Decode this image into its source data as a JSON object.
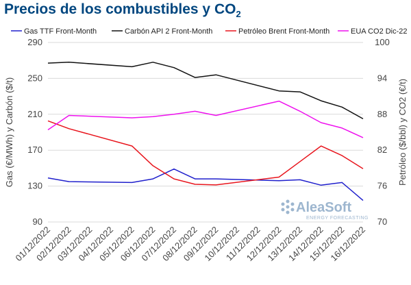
{
  "chart_data": {
    "type": "line",
    "title_main": "Precios de los combustibles y CO",
    "title_sub": "2",
    "categories": [
      "01/12/2022",
      "02/12/2022",
      "03/12/2022",
      "04/12/2022",
      "05/12/2022",
      "06/12/2022",
      "07/12/2022",
      "08/12/2022",
      "09/12/2022",
      "10/12/2022",
      "11/12/2022",
      "12/12/2022",
      "13/12/2022",
      "14/12/2022",
      "15/12/2022",
      "16/12/2022"
    ],
    "y_left_label": "Gas (€/MWh) y Carbón ($/t)",
    "y_right_label": "Petróleo ($/bbl) y CO2 (€/t)",
    "y_left_range": [
      90,
      290
    ],
    "y_left_ticks": [
      "90",
      "130",
      "170",
      "210",
      "250",
      "290"
    ],
    "y_right_range": [
      70,
      100
    ],
    "y_right_ticks": [
      "70",
      "76",
      "82",
      "88",
      "94",
      "100"
    ],
    "grid": "horizontal",
    "legend_position": "top",
    "series": [
      {
        "name": "Gas TTF Front-Month",
        "axis": "left",
        "color": "#1f1fcc",
        "x": [
          "01/12/2022",
          "02/12/2022",
          "05/12/2022",
          "06/12/2022",
          "07/12/2022",
          "08/12/2022",
          "09/12/2022",
          "12/12/2022",
          "13/12/2022",
          "14/12/2022",
          "15/12/2022",
          "16/12/2022"
        ],
        "values": [
          139,
          135,
          134,
          138,
          149,
          138,
          138,
          136,
          137,
          131,
          134,
          114
        ]
      },
      {
        "name": "Carbón API 2 Front-Month",
        "axis": "left",
        "color": "#111111",
        "x": [
          "01/12/2022",
          "02/12/2022",
          "05/12/2022",
          "06/12/2022",
          "07/12/2022",
          "08/12/2022",
          "09/12/2022",
          "12/12/2022",
          "13/12/2022",
          "14/12/2022",
          "15/12/2022",
          "16/12/2022"
        ],
        "values": [
          267,
          268,
          263,
          268,
          262,
          251,
          254,
          236,
          235,
          225,
          218,
          205
        ]
      },
      {
        "name": "Petróleo Brent Front-Month",
        "axis": "right",
        "color": "#e8141c",
        "x": [
          "01/12/2022",
          "02/12/2022",
          "05/12/2022",
          "06/12/2022",
          "07/12/2022",
          "08/12/2022",
          "09/12/2022",
          "12/12/2022",
          "13/12/2022",
          "14/12/2022",
          "15/12/2022",
          "16/12/2022"
        ],
        "values": [
          86.9,
          85.6,
          82.7,
          79.4,
          77.2,
          76.3,
          76.2,
          77.5,
          80.1,
          82.7,
          81.1,
          78.9
        ]
      },
      {
        "name": "EUA CO2 Dic-22",
        "axis": "right",
        "color": "#ee11ee",
        "x": [
          "01/12/2022",
          "02/12/2022",
          "05/12/2022",
          "06/12/2022",
          "07/12/2022",
          "08/12/2022",
          "09/12/2022",
          "12/12/2022",
          "13/12/2022",
          "14/12/2022",
          "15/12/2022",
          "16/12/2022"
        ],
        "values": [
          85.4,
          87.8,
          87.4,
          87.6,
          88.0,
          88.5,
          87.8,
          90.2,
          88.5,
          86.6,
          85.7,
          84.1
        ]
      }
    ]
  },
  "watermark": {
    "brand": "AleaSoft",
    "tagline": "ENERGY FORECASTING"
  }
}
